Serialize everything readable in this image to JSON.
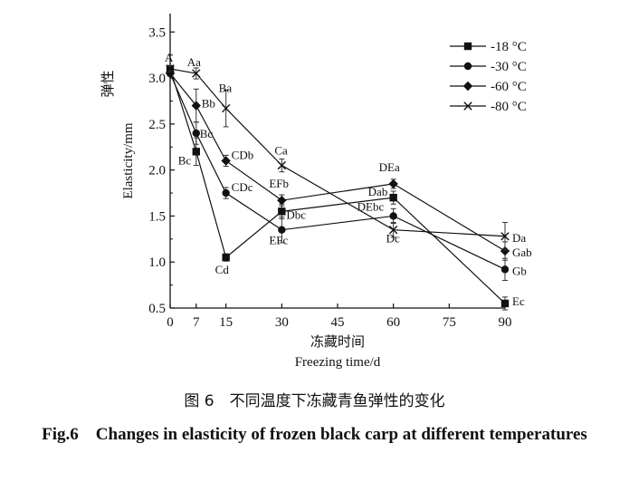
{
  "chart_data": {
    "type": "line",
    "xlabel_cn": "冻藏时间",
    "xlabel_en": "Freezing time/d",
    "ylabel_cn": "弹性",
    "ylabel_en": "Elasticity/mm",
    "x_ticks": [
      0,
      7,
      15,
      30,
      45,
      60,
      75,
      90
    ],
    "y_ticks": [
      0.5,
      1.0,
      1.5,
      2.0,
      2.5,
      3.0,
      3.5
    ],
    "y_tick_labels": [
      "0.5",
      "1.0",
      "1.5",
      "2.0",
      "2.5",
      "3.0",
      "3.5"
    ],
    "xlim": [
      0,
      90
    ],
    "ylim": [
      0.5,
      3.7
    ],
    "legend_position": "top-right",
    "x": [
      0,
      7,
      15,
      30,
      60,
      90
    ],
    "series": [
      {
        "name": "-18 °C",
        "marker": "square",
        "values": [
          3.1,
          2.2,
          1.05,
          1.55,
          1.7,
          0.55
        ],
        "errors": [
          0.03,
          0.15,
          0.04,
          0.08,
          0.07,
          0.07
        ],
        "labels": [
          "A",
          "Bc",
          "Cd",
          "Dbc",
          "Dab",
          "Ec"
        ]
      },
      {
        "name": "-30 °C",
        "marker": "circle",
        "values": [
          3.05,
          2.4,
          1.75,
          1.35,
          1.5,
          0.92
        ],
        "errors": [
          0.03,
          0.12,
          0.06,
          0.14,
          0.08,
          0.12
        ],
        "labels": [
          "",
          "Bc",
          "CDc",
          "EFc",
          "DEbc",
          "Gb"
        ]
      },
      {
        "name": "-60 °C",
        "marker": "diamond",
        "values": [
          3.05,
          2.7,
          2.1,
          1.67,
          1.85,
          1.12
        ],
        "errors": [
          0.03,
          0.18,
          0.06,
          0.06,
          0.05,
          0.1
        ],
        "labels": [
          "",
          "Bb",
          "CDb",
          "EFb",
          "DEa",
          "Gab"
        ]
      },
      {
        "name": "-80 °C",
        "marker": "x",
        "values": [
          3.1,
          3.05,
          2.67,
          2.05,
          1.35,
          1.28
        ],
        "errors": [
          0.03,
          0.06,
          0.2,
          0.07,
          0.08,
          0.15
        ],
        "labels": [
          "",
          "Aa",
          "Ba",
          "Ca",
          "Dc",
          "Da"
        ]
      }
    ]
  },
  "caption": {
    "cn": "图 6　不同温度下冻藏青鱼弹性的变化",
    "en": "Fig.6　Changes in elasticity of frozen black carp at different temperatures"
  }
}
